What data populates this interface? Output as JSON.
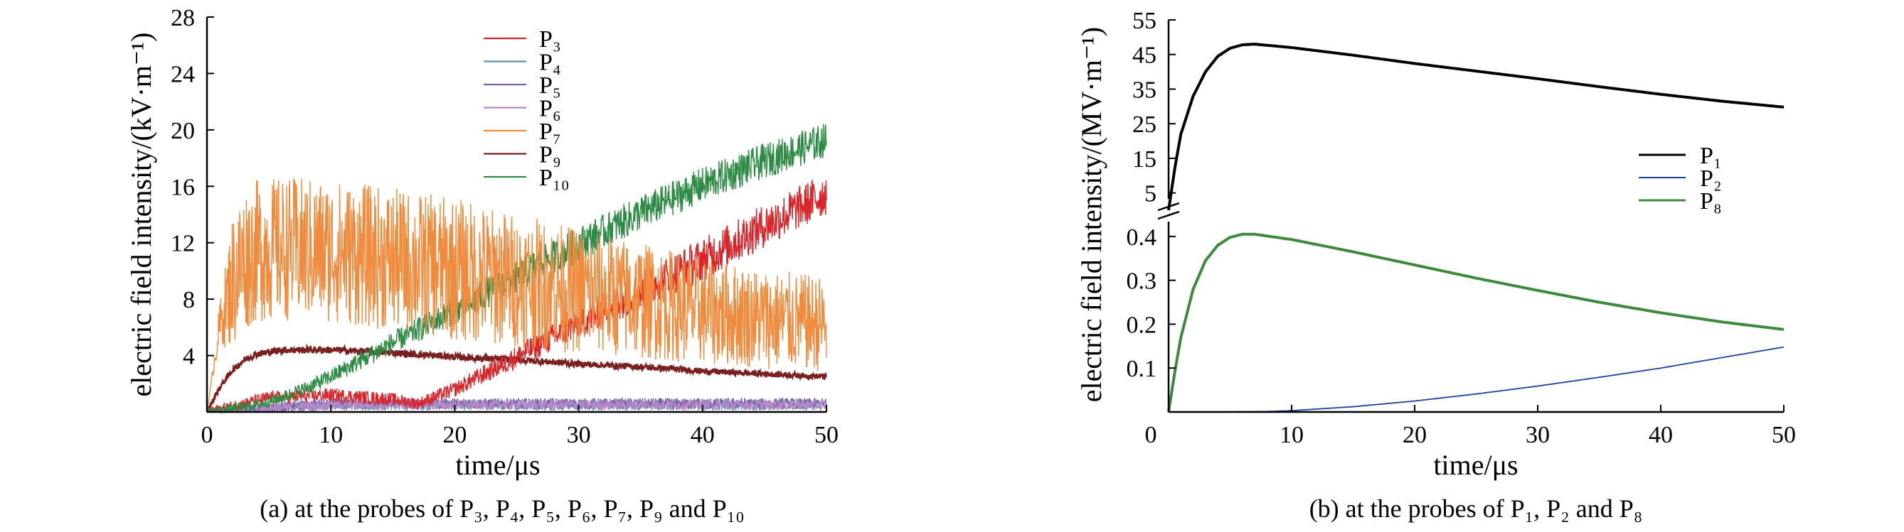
{
  "chart_data": [
    {
      "type": "line",
      "caption": "(a) at the probes of P₃, P₄, P₅, P₆, P₇, P₉ and P₁₀",
      "xlabel": "time/μs",
      "ylabel": "electric field intensity/(kV·m⁻¹)",
      "xlim": [
        0,
        50
      ],
      "ylim": [
        0,
        28
      ],
      "xticks": [
        "0",
        "10",
        "20",
        "30",
        "40",
        "50"
      ],
      "yticks": [
        "4",
        "8",
        "12",
        "16",
        "20",
        "24",
        "28"
      ],
      "legend_position": "top-center",
      "grid": false,
      "series": [
        {
          "name": "P₃",
          "color": "#d9262b",
          "x": [
            0,
            5,
            10,
            15,
            17,
            20,
            25,
            30,
            35,
            40,
            45,
            50
          ],
          "y": [
            0,
            1.0,
            1.2,
            0.9,
            0.6,
            1.6,
            3.9,
            6.3,
            8.6,
            10.8,
            13.2,
            15.5
          ]
        },
        {
          "name": "P₄",
          "color": "#5b8fb0",
          "x": [
            0,
            10,
            20,
            30,
            40,
            50
          ],
          "y": [
            0,
            0.5,
            0.5,
            0.5,
            0.5,
            0.5
          ]
        },
        {
          "name": "P₅",
          "color": "#7a5fa6",
          "x": [
            0,
            10,
            20,
            30,
            40,
            50
          ],
          "y": [
            0,
            0.6,
            0.6,
            0.6,
            0.6,
            0.6
          ]
        },
        {
          "name": "P₆",
          "color": "#b48ac8",
          "x": [
            0,
            10,
            20,
            30,
            40,
            50
          ],
          "y": [
            0,
            0.5,
            0.5,
            0.5,
            0.5,
            0.5
          ]
        },
        {
          "name": "P₇",
          "color": "#f08a3c",
          "x": [
            0,
            1,
            2,
            3,
            4,
            6,
            10,
            15,
            20,
            25,
            30,
            35,
            40,
            45,
            50
          ],
          "y": [
            0,
            6.0,
            9.2,
            10.8,
            11.4,
            11.6,
            11.4,
            10.8,
            10.1,
            9.3,
            8.6,
            7.9,
            7.2,
            6.6,
            6.2
          ]
        },
        {
          "name": "P₉",
          "color": "#7a1f1f",
          "x": [
            0,
            1,
            2,
            3,
            4,
            6,
            10,
            15,
            20,
            25,
            30,
            35,
            40,
            45,
            50
          ],
          "y": [
            0,
            1.7,
            2.9,
            3.7,
            4.1,
            4.4,
            4.4,
            4.2,
            3.9,
            3.7,
            3.4,
            3.2,
            2.9,
            2.7,
            2.5
          ]
        },
        {
          "name": "P₁₀",
          "color": "#2e8b45",
          "x": [
            0,
            2,
            4,
            6,
            8,
            10,
            15,
            20,
            25,
            30,
            35,
            40,
            45,
            50
          ],
          "y": [
            0,
            0.2,
            0.5,
            1.0,
            1.7,
            2.5,
            4.9,
            7.2,
            9.6,
            11.9,
            14.1,
            16.1,
            17.8,
            19.3
          ]
        }
      ]
    },
    {
      "type": "line",
      "caption": "(b) at the probes of P₁, P₂ and P₈",
      "xlabel": "time/μs",
      "ylabel": "electric field intensity/(MV·m⁻¹)",
      "xlim": [
        0,
        50
      ],
      "axis_break": true,
      "upper_ylim": [
        0,
        55
      ],
      "upper_yticks": [
        "5",
        "15",
        "25",
        "35",
        "45",
        "55"
      ],
      "lower_ylim": [
        0,
        0.45
      ],
      "lower_yticks": [
        "0.1",
        "0.2",
        "0.3",
        "0.4"
      ],
      "xticks": [
        "0",
        "10",
        "20",
        "30",
        "40",
        "50"
      ],
      "legend_position": "right",
      "grid": false,
      "series": [
        {
          "name": "P₁",
          "color": "#000000",
          "x": [
            0,
            0.5,
            1,
            2,
            3,
            4,
            5,
            6,
            7,
            10,
            15,
            20,
            25,
            30,
            35,
            40,
            45,
            50
          ],
          "y": [
            0,
            12,
            22,
            33,
            40,
            44.5,
            46.8,
            47.8,
            48,
            47,
            44.8,
            42.4,
            40.2,
            38,
            35.7,
            33.5,
            31.5,
            29.8
          ]
        },
        {
          "name": "P₂",
          "color": "#1f3f9f",
          "x": [
            0,
            4,
            8,
            10,
            15,
            20,
            25,
            30,
            35,
            40,
            45,
            50
          ],
          "y": [
            0,
            0,
            0.001,
            0.003,
            0.012,
            0.025,
            0.041,
            0.059,
            0.079,
            0.1,
            0.124,
            0.148
          ]
        },
        {
          "name": "P₈",
          "color": "#3d8a3d",
          "x": [
            0,
            0.5,
            1,
            2,
            3,
            4,
            5,
            6,
            7,
            10,
            15,
            20,
            25,
            30,
            35,
            40,
            45,
            50
          ],
          "y": [
            0,
            0.09,
            0.17,
            0.28,
            0.345,
            0.38,
            0.398,
            0.405,
            0.405,
            0.393,
            0.365,
            0.335,
            0.305,
            0.277,
            0.25,
            0.226,
            0.205,
            0.188
          ]
        }
      ]
    }
  ]
}
